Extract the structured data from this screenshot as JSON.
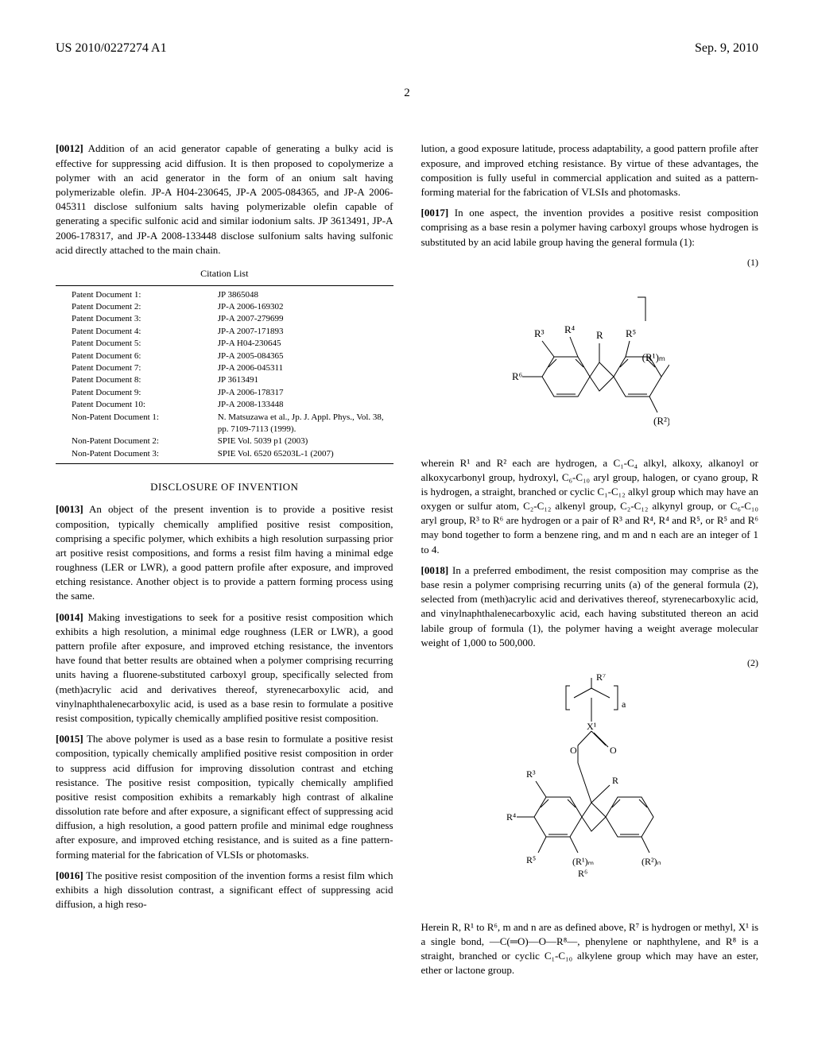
{
  "header": {
    "pub_number": "US 2010/0227274 A1",
    "pub_date": "Sep. 9, 2010"
  },
  "page_number": "2",
  "left_column": {
    "para_0012_num": "[0012]",
    "para_0012": "Addition of an acid generator capable of generating a bulky acid is effective for suppressing acid diffusion. It is then proposed to copolymerize a polymer with an acid generator in the form of an onium salt having polymerizable olefin. JP-A H04-230645, JP-A 2005-084365, and JP-A 2006-045311 disclose sulfonium salts having polymerizable olefin capable of generating a specific sulfonic acid and similar iodonium salts. JP 3613491, JP-A 2006-178317, and JP-A 2008-133448 disclose sulfonium salts having sulfonic acid directly attached to the main chain.",
    "citation_title": "Citation List",
    "citations": [
      {
        "label": "Patent Document 1:",
        "value": "JP 3865048"
      },
      {
        "label": "Patent Document 2:",
        "value": "JP-A 2006-169302"
      },
      {
        "label": "Patent Document 3:",
        "value": "JP-A 2007-279699"
      },
      {
        "label": "Patent Document 4:",
        "value": "JP-A 2007-171893"
      },
      {
        "label": "Patent Document 5:",
        "value": "JP-A H04-230645"
      },
      {
        "label": "Patent Document 6:",
        "value": "JP-A 2005-084365"
      },
      {
        "label": "Patent Document 7:",
        "value": "JP-A 2006-045311"
      },
      {
        "label": "Patent Document 8:",
        "value": "JP 3613491"
      },
      {
        "label": "Patent Document 9:",
        "value": "JP-A 2006-178317"
      },
      {
        "label": "Patent Document 10:",
        "value": "JP-A 2008-133448"
      },
      {
        "label": "Non-Patent Document 1:",
        "value": "N. Matsuzawa et al., Jp. J. Appl. Phys., Vol. 38, pp. 7109-7113 (1999)."
      },
      {
        "label": "Non-Patent Document 2:",
        "value": "SPIE Vol. 5039 p1 (2003)"
      },
      {
        "label": "Non-Patent Document 3:",
        "value": "SPIE Vol. 6520 65203L-1 (2007)"
      }
    ],
    "disclosure_title": "DISCLOSURE OF INVENTION",
    "para_0013_num": "[0013]",
    "para_0013": "An object of the present invention is to provide a positive resist composition, typically chemically amplified positive resist composition, comprising a specific polymer, which exhibits a high resolution surpassing prior art positive resist compositions, and forms a resist film having a minimal edge roughness (LER or LWR), a good pattern profile after exposure, and improved etching resistance. Another object is to provide a pattern forming process using the same.",
    "para_0014_num": "[0014]",
    "para_0014": "Making investigations to seek for a positive resist composition which exhibits a high resolution, a minimal edge roughness (LER or LWR), a good pattern profile after exposure, and improved etching resistance, the inventors have found that better results are obtained when a polymer comprising recurring units having a fluorene-substituted carboxyl group, specifically selected from (meth)acrylic acid and derivatives thereof, styrenecarboxylic acid, and vinylnaphthalenecarboxylic acid, is used as a base resin to formulate a positive resist composition, typically chemically amplified positive resist composition.",
    "para_0015_num": "[0015]",
    "para_0015": "The above polymer is used as a base resin to formulate a positive resist composition, typically chemically amplified positive resist composition in order to suppress acid diffusion for improving dissolution contrast and etching resistance. The positive resist composition, typically chemically amplified positive resist composition exhibits a remarkably high contrast of alkaline dissolution rate before and after exposure, a significant effect of suppressing acid diffusion, a high resolution, a good pattern profile and minimal edge roughness after exposure, and improved etching resistance, and is suited as a fine pattern-forming material for the fabrication of VLSIs or photomasks.",
    "para_0016_num": "[0016]",
    "para_0016": "The positive resist composition of the invention forms a resist film which exhibits a high dissolution contrast, a significant effect of suppressing acid diffusion, a high reso-"
  },
  "right_column": {
    "para_cont": "lution, a good exposure latitude, process adaptability, a good pattern profile after exposure, and improved etching resistance. By virtue of these advantages, the composition is fully useful in commercial application and suited as a pattern-forming material for the fabrication of VLSIs and photomasks.",
    "para_0017_num": "[0017]",
    "para_0017": "In one aspect, the invention provides a positive resist composition comprising as a base resin a polymer having carboxyl groups whose hydrogen is substituted by an acid labile group having the general formula (1):",
    "formula1_label": "(1)",
    "chem1": {
      "labels": {
        "R": "R",
        "R1m": "(R¹)ₘ",
        "R2n": "(R²)ₙ",
        "R3": "R³",
        "R4": "R⁴",
        "R5": "R⁵",
        "R6": "R⁶"
      }
    },
    "para_wherein1": "wherein R¹ and R² each are hydrogen, a C₁-C₄ alkyl, alkoxy, alkanoyl or alkoxycarbonyl group, hydroxyl, C₆-C₁₀ aryl group, halogen, or cyano group, R is hydrogen, a straight, branched or cyclic C₁-C₁₂ alkyl group which may have an oxygen or sulfur atom, C₂-C₁₂ alkenyl group, C₂-C₁₂ alkynyl group, or C₆-C₁₀ aryl group, R³ to R⁶ are hydrogen or a pair of R³ and R⁴, R⁴ and R⁵, or R⁵ and R⁶ may bond together to form a benzene ring, and m and n each are an integer of 1 to 4.",
    "para_0018_num": "[0018]",
    "para_0018": "In a preferred embodiment, the resist composition may comprise as the base resin a polymer comprising recurring units (a) of the general formula (2), selected from (meth)acrylic acid and derivatives thereof, styrenecarboxylic acid, and vinylnaphthalenecarboxylic acid, each having substituted thereon an acid labile group of formula (1), the polymer having a weight average molecular weight of 1,000 to 500,000.",
    "formula2_label": "(2)",
    "chem2": {
      "labels": {
        "R": "R",
        "R1m": "(R¹)ₘ",
        "R2n": "(R²)ₙ",
        "R3": "R³",
        "R4": "R⁴",
        "R5": "R⁵",
        "R6": "R⁶",
        "R7": "R⁷",
        "X1": "X¹",
        "a": "a",
        "O1": "O",
        "O2": "O"
      }
    },
    "para_herein": "Herein R, R¹ to R⁶, m and n are as defined above, R⁷ is hydrogen or methyl, X¹ is a single bond, —C(═O)—O—R⁸—, phenylene or naphthylene, and R⁸ is a straight, branched or cyclic C₁-C₁₀ alkylene group which may have an ester, ether or lactone group."
  }
}
